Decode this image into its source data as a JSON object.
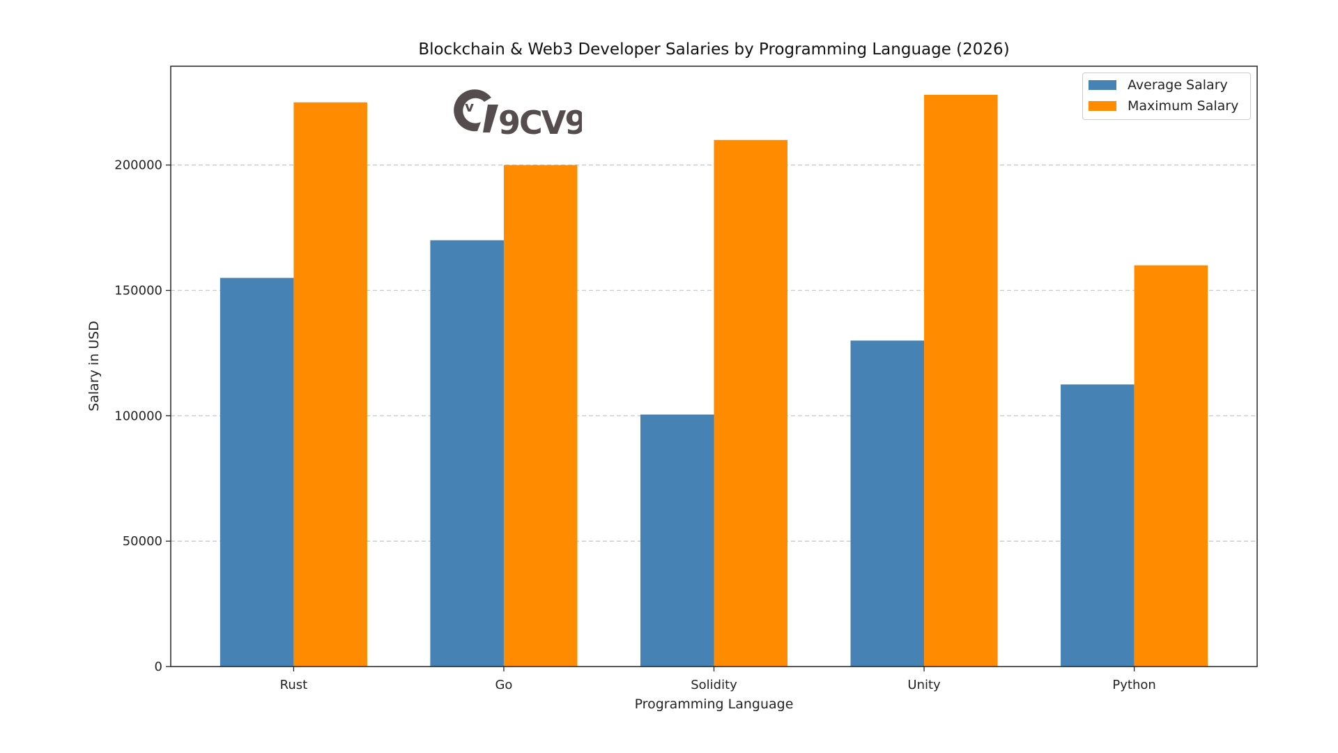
{
  "chart_data": {
    "type": "bar",
    "title": "Blockchain & Web3 Developer Salaries by Programming Language (2026)",
    "xlabel": "Programming Language",
    "ylabel": "Salary in USD",
    "categories": [
      "Rust",
      "Go",
      "Solidity",
      "Unity",
      "Python"
    ],
    "series": [
      {
        "name": "Average Salary",
        "color": "#4682B4",
        "values": [
          155000,
          170000,
          100500,
          130000,
          112500
        ]
      },
      {
        "name": "Maximum Salary",
        "color": "#FF8C00",
        "values": [
          225000,
          200000,
          210000,
          228000,
          160000
        ]
      }
    ],
    "ylim": [
      0,
      239400
    ],
    "yticks": [
      0,
      50000,
      100000,
      150000,
      200000
    ],
    "ytick_labels": [
      "0",
      "50000",
      "100000",
      "150000",
      "200000"
    ],
    "grid": "y-dashed",
    "legend_position": "top-right"
  },
  "watermark": {
    "text": "9CV9",
    "color": "#554d4d"
  }
}
